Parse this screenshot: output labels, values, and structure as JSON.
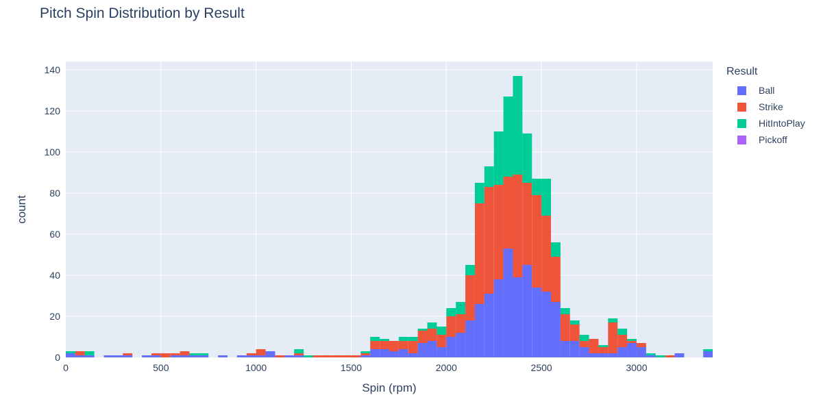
{
  "chart_data": {
    "type": "bar",
    "barmode": "stack",
    "title": "Pitch Spin Distribution by Result",
    "xlabel": "Spin (rpm)",
    "ylabel": "count",
    "legend_title": "Result",
    "legend_placement": "right",
    "xlim": [
      0,
      3400
    ],
    "ylim": [
      0,
      144
    ],
    "xticks": [
      0,
      500,
      1000,
      1500,
      2000,
      2500,
      3000
    ],
    "yticks": [
      0,
      20,
      40,
      60,
      80,
      100,
      120,
      140
    ],
    "bin_width": 50,
    "bin_starts": [
      0,
      50,
      100,
      200,
      250,
      300,
      400,
      450,
      500,
      550,
      600,
      650,
      700,
      800,
      900,
      950,
      1000,
      1050,
      1100,
      1150,
      1200,
      1250,
      1300,
      1350,
      1400,
      1450,
      1500,
      1550,
      1600,
      1650,
      1700,
      1750,
      1800,
      1850,
      1900,
      1950,
      2000,
      2050,
      2100,
      2150,
      2200,
      2250,
      2300,
      2350,
      2400,
      2450,
      2500,
      2550,
      2600,
      2650,
      2700,
      2750,
      2800,
      2850,
      2900,
      2950,
      3000,
      3050,
      3100,
      3150,
      3200,
      3350
    ],
    "series": [
      {
        "name": "Ball",
        "color": "#636efa",
        "values": [
          2,
          1,
          1,
          1,
          1,
          1,
          1,
          1,
          0,
          1,
          1,
          1,
          1,
          1,
          1,
          1,
          1,
          3,
          0,
          1,
          1,
          0,
          0,
          0,
          0,
          0,
          0,
          1,
          4,
          4,
          3,
          4,
          2,
          7,
          8,
          5,
          10,
          12,
          18,
          26,
          31,
          38,
          53,
          39,
          45,
          34,
          32,
          27,
          8,
          8,
          5,
          2,
          2,
          2,
          5,
          7,
          5,
          1,
          0,
          0,
          2,
          3
        ],
        "colors": [
          1
        ]
      },
      {
        "name": "Strike",
        "color": "#ef553b",
        "values": [
          0,
          2,
          0,
          0,
          0,
          1,
          0,
          1,
          2,
          1,
          2,
          0,
          0,
          0,
          0,
          1,
          3,
          0,
          1,
          0,
          1,
          0,
          1,
          1,
          1,
          1,
          1,
          1,
          4,
          4,
          5,
          4,
          6,
          6,
          6,
          6,
          10,
          9,
          22,
          49,
          52,
          46,
          35,
          50,
          40,
          45,
          37,
          22,
          13,
          8,
          3,
          7,
          3,
          15,
          6,
          1,
          2,
          0,
          0,
          1,
          0,
          0
        ]
      },
      {
        "name": "HitIntoPlay",
        "color": "#00cc96",
        "values": [
          1,
          0,
          2,
          0,
          0,
          0,
          0,
          0,
          0,
          0,
          0,
          1,
          1,
          0,
          0,
          0,
          0,
          0,
          0,
          0,
          2,
          1,
          0,
          0,
          0,
          0,
          0,
          1,
          2,
          1,
          0,
          2,
          2,
          1,
          3,
          4,
          4,
          6,
          5,
          10,
          10,
          26,
          39,
          48,
          24,
          8,
          18,
          7,
          3,
          2,
          3,
          0,
          1,
          2,
          3,
          1,
          0,
          1,
          1,
          0,
          0,
          1
        ]
      },
      {
        "name": "Pickoff",
        "color": "#ab63fa",
        "values": [
          0,
          0,
          0,
          0,
          0,
          0,
          0,
          0,
          0,
          0,
          0,
          0,
          0,
          0,
          0,
          0,
          0,
          0,
          0,
          0,
          0,
          0,
          0,
          0,
          0,
          0,
          0,
          0,
          0,
          0,
          0,
          0,
          0,
          0,
          0,
          0,
          0,
          0,
          0,
          0,
          0,
          0,
          0,
          0,
          0,
          0,
          0,
          0,
          0,
          0,
          0,
          0,
          0,
          0,
          0,
          0,
          0,
          0,
          0,
          0,
          0,
          0
        ]
      }
    ]
  }
}
